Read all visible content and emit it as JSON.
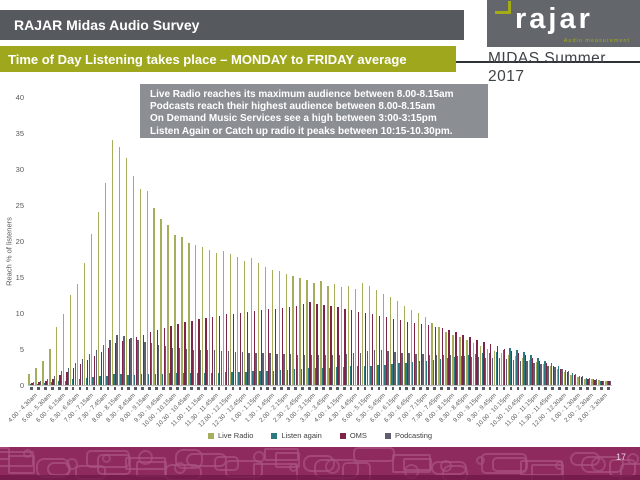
{
  "header": {
    "title": "RAJAR Midas Audio Survey"
  },
  "logo": {
    "brand": "rajar",
    "tagline": "Audio measurement",
    "accent_color": "#a3ac15",
    "background": "#63676c"
  },
  "banner": {
    "title": "Time of Day Listening takes place – MONDAY to FRIDAY average",
    "background": "#9fa81c"
  },
  "edition": {
    "label": "MIDAS Summer 2017"
  },
  "callout": {
    "lines": [
      "Live Radio reaches its maximum audience between 8.00-8.15am",
      "Podcasts reach their highest audience between 8.00-8.15am",
      "On Demand Music Services see a high between 3:00-3:15pm",
      "Listen Again or Catch up radio it peaks between 10:15-10.30pm."
    ]
  },
  "chart_data": {
    "type": "bar",
    "title": "",
    "xlabel": "",
    "ylabel": "Reach % of listeners",
    "ylim": [
      0,
      40
    ],
    "yticks": [
      0,
      5,
      10,
      15,
      20,
      25,
      30,
      35,
      40
    ],
    "grid": false,
    "legend_position": "bottom",
    "categories": [
      "4.00 - 4.30am",
      "",
      "5.00 - 5.30am",
      "",
      "6.00 - 6.15am",
      "",
      "6.30 - 6.45am",
      "",
      "7.00 - 7.15am",
      "",
      "7.30 - 7.45am",
      "",
      "8.00 - 8.15am",
      "",
      "8.30 - 8.45am",
      "",
      "9.00 - 9.15am",
      "",
      "9.30 - 9.45am",
      "",
      "10.00 - 10.15am",
      "",
      "10.30 - 10.45am",
      "",
      "11.00 - 11.15am",
      "",
      "11.30 - 11.45am",
      "",
      "12.00 - 12.15pm",
      "",
      "12.30 - 12.45pm",
      "",
      "1.00 - 1.15pm",
      "",
      "1.30 - 1.45pm",
      "",
      "2.00 - 2.15pm",
      "",
      "2.30 - 2.45pm",
      "",
      "3.00 - 3.15pm",
      "",
      "3.30 - 3.45pm",
      "",
      "4.00 - 4.15pm",
      "",
      "4.30 - 4.45pm",
      "",
      "5.00 - 5.15pm",
      "",
      "5.30 - 5.45pm",
      "",
      "6.00 - 6.15pm",
      "",
      "6.30 - 6.45pm",
      "",
      "7.00 - 7.15pm",
      "",
      "7.30 - 7.45pm",
      "",
      "8.00 - 8.15pm",
      "",
      "8.30 - 8.45pm",
      "",
      "9.00 - 9.15pm",
      "",
      "9.30 - 9.45pm",
      "",
      "10.00 - 10.15pm",
      "",
      "10.30 - 10.45pm",
      "",
      "11.00 - 11.15pm",
      "",
      "11.30 - 11.45pm",
      "",
      "12.00 - 12.30am",
      "",
      "1.00 - 1.30am",
      "",
      "2.00 - 2.30am",
      "",
      "3.00 - 3.30am",
      ""
    ],
    "series": [
      {
        "name": "Live Radio",
        "color": "#a6ad5b",
        "values": [
          1.5,
          2.3,
          3.4,
          5.0,
          8.0,
          9.8,
          12.5,
          14.0,
          17.0,
          21.0,
          24.0,
          28.0,
          34.0,
          33.0,
          31.5,
          29.0,
          27.2,
          27.0,
          24.6,
          23.0,
          22.2,
          20.8,
          20.6,
          19.7,
          19.4,
          19.2,
          18.8,
          18.4,
          18.6,
          18.2,
          17.8,
          17.2,
          17.6,
          17.0,
          16.4,
          16.0,
          15.8,
          15.4,
          15.2,
          14.8,
          14.6,
          14.2,
          14.4,
          13.8,
          14.0,
          13.6,
          13.8,
          13.4,
          14.2,
          13.8,
          13.2,
          12.6,
          12.2,
          11.6,
          11.0,
          10.4,
          10.0,
          9.4,
          8.6,
          8.0,
          7.4,
          7.0,
          6.6,
          6.2,
          5.8,
          5.4,
          5.0,
          4.7,
          4.4,
          4.2,
          4.0,
          3.8,
          3.5,
          3.2,
          2.9,
          2.6,
          2.2,
          1.8,
          1.4,
          1.1,
          0.9,
          0.8,
          0.7,
          0.6
        ]
      },
      {
        "name": "Listen again",
        "color": "#2b7a82",
        "values": [
          0.2,
          0.2,
          0.3,
          0.4,
          0.5,
          0.6,
          0.8,
          0.9,
          1.0,
          1.1,
          1.2,
          1.3,
          1.5,
          1.5,
          1.4,
          1.4,
          1.5,
          1.5,
          1.5,
          1.5,
          1.6,
          1.6,
          1.6,
          1.6,
          1.7,
          1.7,
          1.7,
          1.7,
          1.8,
          1.8,
          1.8,
          1.8,
          1.9,
          1.9,
          2.0,
          2.0,
          2.1,
          2.1,
          2.2,
          2.2,
          2.3,
          2.3,
          2.4,
          2.4,
          2.5,
          2.5,
          2.6,
          2.6,
          2.7,
          2.7,
          2.8,
          2.8,
          2.9,
          3.0,
          3.1,
          3.2,
          3.3,
          3.4,
          3.5,
          3.6,
          3.8,
          3.9,
          4.0,
          4.1,
          4.3,
          4.4,
          4.5,
          4.6,
          4.8,
          5.1,
          4.9,
          4.6,
          4.2,
          3.8,
          3.4,
          3.0,
          2.6,
          2.1,
          1.7,
          1.3,
          1.0,
          0.8,
          0.6,
          0.5
        ]
      },
      {
        "name": "OMS",
        "color": "#7f2449",
        "values": [
          0.3,
          0.4,
          0.6,
          0.9,
          1.4,
          1.8,
          2.4,
          2.9,
          3.5,
          4.0,
          4.6,
          5.2,
          5.8,
          6.1,
          6.4,
          6.7,
          7.0,
          7.3,
          7.6,
          7.9,
          8.2,
          8.5,
          8.7,
          8.9,
          9.1,
          9.3,
          9.5,
          9.6,
          9.8,
          9.9,
          10.0,
          10.1,
          10.3,
          10.4,
          10.5,
          10.6,
          10.7,
          10.8,
          11.0,
          11.2,
          11.5,
          11.3,
          11.1,
          11.0,
          10.8,
          10.6,
          10.4,
          10.2,
          10.0,
          9.8,
          9.6,
          9.4,
          9.2,
          9.0,
          8.8,
          8.6,
          8.5,
          8.3,
          8.1,
          7.9,
          7.6,
          7.3,
          7.0,
          6.7,
          6.3,
          6.0,
          5.7,
          5.4,
          5.0,
          4.7,
          4.4,
          4.1,
          3.7,
          3.4,
          3.0,
          2.7,
          2.2,
          1.8,
          1.4,
          1.1,
          0.9,
          0.7,
          0.6,
          0.5
        ]
      },
      {
        "name": "Podcasting",
        "color": "#5e5e6f",
        "values": [
          0.4,
          0.6,
          0.9,
          1.3,
          1.9,
          2.4,
          3.0,
          3.6,
          4.3,
          4.9,
          5.6,
          6.3,
          7.0,
          6.8,
          6.5,
          6.2,
          6.0,
          5.8,
          5.6,
          5.4,
          5.2,
          5.1,
          5.0,
          4.9,
          4.9,
          4.8,
          4.8,
          4.7,
          4.7,
          4.6,
          4.6,
          4.5,
          4.5,
          4.4,
          4.4,
          4.3,
          4.3,
          4.3,
          4.2,
          4.2,
          4.2,
          4.1,
          4.1,
          4.1,
          4.2,
          4.3,
          4.4,
          4.5,
          4.7,
          4.8,
          4.8,
          4.7,
          4.6,
          4.5,
          4.4,
          4.3,
          4.3,
          4.2,
          4.2,
          4.1,
          4.1,
          4.0,
          4.0,
          3.9,
          3.9,
          3.8,
          3.8,
          3.7,
          3.6,
          3.5,
          3.4,
          3.3,
          3.1,
          2.9,
          2.7,
          2.5,
          2.2,
          1.9,
          1.5,
          1.2,
          1.0,
          0.8,
          0.6,
          0.5
        ]
      }
    ]
  },
  "footer": {
    "page_number": "17",
    "background": "#8e2a5d"
  }
}
